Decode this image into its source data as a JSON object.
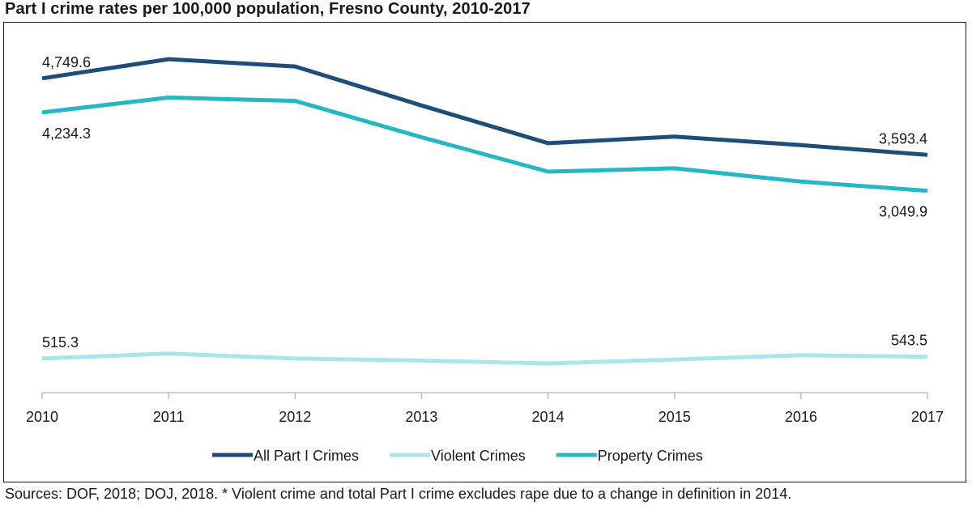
{
  "title": "Part I crime rates per 100,000 population, Fresno County, 2010-2017",
  "source": "Sources: DOF, 2018; DOJ, 2018. * Violent crime and total Part I crime excludes rape due to a change in definition in 2014.",
  "chart_data": {
    "type": "line",
    "x": [
      "2010",
      "2011",
      "2012",
      "2013",
      "2014",
      "2015",
      "2016",
      "2017"
    ],
    "ylim": [
      0,
      5200
    ],
    "grid": false,
    "legend_position": "bottom",
    "series": [
      {
        "name": "All Part I Crimes",
        "color": "#1d4e7a",
        "values": [
          4749.6,
          5040,
          4930,
          4340,
          3770,
          3870,
          3740,
          3593.4
        ],
        "labels": [
          {
            "index": 0,
            "text": "4,749.6",
            "pos": "above"
          },
          {
            "index": 7,
            "text": "3,593.4",
            "pos": "above"
          }
        ]
      },
      {
        "name": "Violent Crimes",
        "color": "#a8e6ea",
        "values": [
          515.3,
          590,
          515,
          485,
          440,
          500,
          565,
          543.5
        ],
        "labels": [
          {
            "index": 0,
            "text": "515.3",
            "pos": "above"
          },
          {
            "index": 7,
            "text": "543.5",
            "pos": "above"
          }
        ]
      },
      {
        "name": "Property Crimes",
        "color": "#23b8c2",
        "values": [
          4234.3,
          4460,
          4410,
          3860,
          3340,
          3390,
          3190,
          3049.9
        ],
        "labels": [
          {
            "index": 0,
            "text": "4,234.3",
            "pos": "below"
          },
          {
            "index": 7,
            "text": "3,049.9",
            "pos": "below"
          }
        ]
      }
    ]
  }
}
